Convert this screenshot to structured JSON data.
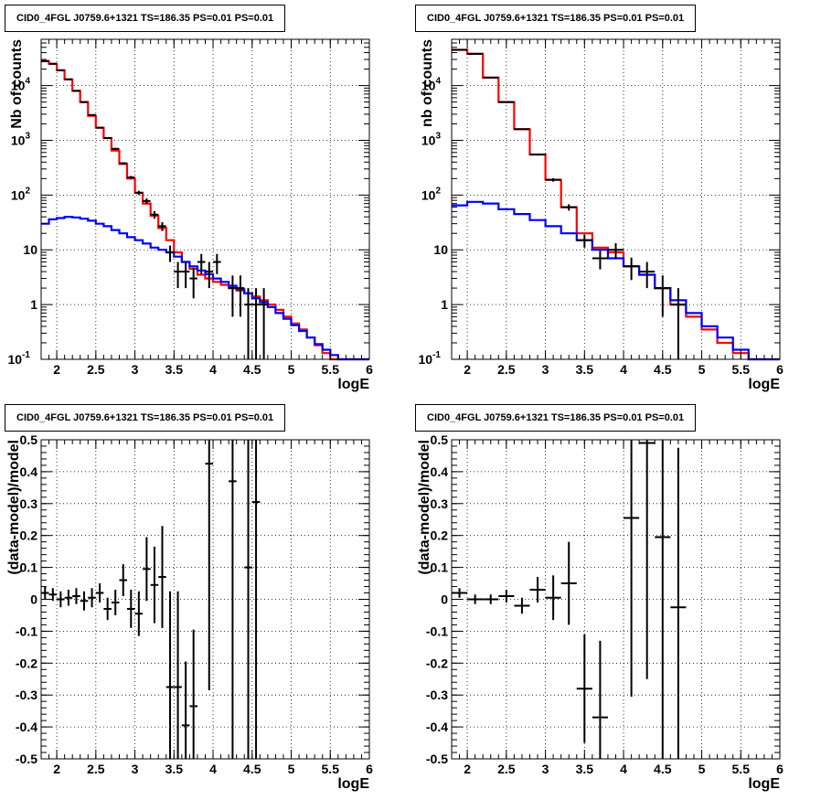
{
  "chart_data": [
    {
      "type": "line",
      "title": "CID0_4FGL J0759.6+1321 TS=186.35 PS=0.01 PS=0.01",
      "xlabel": "logE",
      "ylabel": "Nb of counts",
      "log_y": true,
      "xlim": [
        1.8,
        6.0
      ],
      "ylim": [
        0.1,
        70000
      ],
      "x_ticks": [
        "2",
        "2.5",
        "3",
        "3.5",
        "4",
        "4.5",
        "5",
        "5.5",
        "6"
      ],
      "y_ticks": [
        "10^-1",
        "1",
        "10",
        "10^2",
        "10^3",
        "10^4"
      ],
      "grid": true,
      "series": [
        {
          "type": "step",
          "color": "#ff0000",
          "edges": [
            1.8,
            1.9,
            2.0,
            2.1,
            2.2,
            2.3,
            2.4,
            2.5,
            2.6,
            2.7,
            2.8,
            2.9,
            3.0,
            3.1,
            3.2,
            3.3,
            3.4,
            3.5,
            3.6,
            3.7,
            3.8,
            3.9,
            4.0,
            4.1,
            4.2,
            4.3,
            4.4,
            4.5,
            4.6,
            4.7,
            4.8,
            4.9,
            5.0,
            5.1,
            5.2,
            5.3,
            5.4,
            5.5,
            5.6,
            5.7,
            5.8,
            5.9,
            6.0
          ],
          "values": [
            28000,
            25000,
            19000,
            13000,
            8000,
            5000,
            2800,
            1700,
            1100,
            650,
            370,
            200,
            110,
            70,
            42,
            25,
            15,
            9,
            6,
            4.5,
            3.5,
            3,
            2.6,
            2.3,
            2,
            1.8,
            1.6,
            1.4,
            1.2,
            1,
            0.8,
            0.6,
            0.45,
            0.35,
            0.25,
            0.18,
            0.13,
            0.1,
            0.1,
            0.1,
            0.1,
            0.1
          ]
        },
        {
          "type": "step",
          "color": "#0000ff",
          "edges": [
            1.8,
            1.9,
            2.0,
            2.1,
            2.2,
            2.3,
            2.4,
            2.5,
            2.6,
            2.7,
            2.8,
            2.9,
            3.0,
            3.1,
            3.2,
            3.3,
            3.4,
            3.5,
            3.6,
            3.7,
            3.8,
            3.9,
            4.0,
            4.1,
            4.2,
            4.3,
            4.4,
            4.5,
            4.6,
            4.7,
            4.8,
            4.9,
            5.0,
            5.1,
            5.2,
            5.3,
            5.4,
            5.5,
            5.6,
            5.7,
            5.8,
            5.9,
            6.0
          ],
          "values": [
            30,
            36,
            38,
            40,
            39,
            37,
            34,
            30,
            27,
            23,
            20,
            17,
            15,
            13,
            11,
            10,
            9,
            7.5,
            6,
            5,
            4.2,
            3.6,
            3,
            2.6,
            2.2,
            1.9,
            1.6,
            1.3,
            1.1,
            0.9,
            0.7,
            0.55,
            0.42,
            0.33,
            0.25,
            0.19,
            0.15,
            0.12,
            0.1,
            0.1,
            0.1,
            0.1
          ]
        },
        {
          "type": "points",
          "color": "#000000",
          "x": [
            1.85,
            1.95,
            2.05,
            2.15,
            2.25,
            2.35,
            2.45,
            2.55,
            2.65,
            2.75,
            2.85,
            2.95,
            3.05,
            3.15,
            3.25,
            3.35,
            3.45,
            3.55,
            3.65,
            3.75,
            3.85,
            3.95,
            4.05,
            4.25,
            4.35,
            4.45,
            4.55,
            4.65
          ],
          "y": [
            28000,
            25000,
            19000,
            13000,
            8000,
            5000,
            2900,
            1700,
            1100,
            700,
            380,
            210,
            110,
            78,
            44,
            27,
            9,
            4,
            4,
            3,
            6,
            4,
            6,
            2,
            2,
            1,
            1,
            1
          ],
          "xerr": 0.05,
          "yerr_lo": [
            170,
            160,
            140,
            120,
            90,
            70,
            54,
            41,
            33,
            26,
            20,
            14,
            10,
            9,
            7,
            5,
            3,
            2,
            2,
            1.7,
            2.4,
            2,
            2.4,
            1.4,
            1.4,
            1,
            1,
            1
          ],
          "yerr_hi": [
            170,
            160,
            140,
            120,
            90,
            70,
            54,
            41,
            33,
            26,
            20,
            14,
            10,
            9,
            7,
            5,
            3,
            2,
            2,
            1.7,
            2.4,
            2,
            2.4,
            1.4,
            1.4,
            1,
            1,
            1
          ]
        }
      ]
    },
    {
      "type": "line",
      "title": "CID0_4FGL J0759.6+1321 TS=186.35 PS=0.01 PS=0.01",
      "xlabel": "logE",
      "ylabel": "nb of counts",
      "log_y": true,
      "xlim": [
        1.8,
        6.0
      ],
      "ylim": [
        0.1,
        70000
      ],
      "x_ticks": [
        "2",
        "2.5",
        "3",
        "3.5",
        "4",
        "4.5",
        "5",
        "5.5",
        "6"
      ],
      "y_ticks": [
        "10^-1",
        "1",
        "10",
        "10^2",
        "10^3",
        "10^4"
      ],
      "grid": true,
      "series": [
        {
          "type": "step",
          "color": "#ff0000",
          "edges": [
            1.8,
            2.0,
            2.2,
            2.4,
            2.6,
            2.8,
            3.0,
            3.2,
            3.4,
            3.6,
            3.8,
            4.0,
            4.2,
            4.4,
            4.6,
            4.8,
            5.0,
            5.2,
            5.4,
            5.6,
            5.8,
            6.0
          ],
          "values": [
            45000,
            38000,
            14000,
            5000,
            1600,
            550,
            190,
            60,
            20,
            11,
            9,
            5,
            3.5,
            2,
            1,
            0.6,
            0.35,
            0.2,
            0.13,
            0.1,
            0.1
          ]
        },
        {
          "type": "step",
          "color": "#0000ff",
          "edges": [
            1.8,
            2.0,
            2.2,
            2.4,
            2.6,
            2.8,
            3.0,
            3.2,
            3.4,
            3.6,
            3.8,
            4.0,
            4.2,
            4.4,
            4.6,
            4.8,
            5.0,
            5.2,
            5.4,
            5.6,
            5.8,
            6.0
          ],
          "values": [
            65,
            75,
            70,
            55,
            45,
            35,
            27,
            20,
            15,
            10,
            7,
            5,
            3.5,
            2,
            1.2,
            0.7,
            0.4,
            0.25,
            0.15,
            0.1,
            0.1
          ]
        },
        {
          "type": "points",
          "color": "#000000",
          "x": [
            1.9,
            2.1,
            2.3,
            2.5,
            2.7,
            2.9,
            3.1,
            3.3,
            3.5,
            3.7,
            3.9,
            4.1,
            4.3,
            4.5,
            4.7
          ],
          "y": [
            45000,
            38000,
            14000,
            5000,
            1600,
            550,
            190,
            60,
            15,
            7,
            10,
            5,
            4,
            2,
            1
          ],
          "xerr": 0.1,
          "yerr_lo": [
            212,
            195,
            118,
            70,
            40,
            23,
            14,
            8,
            4,
            2.6,
            3.2,
            2.2,
            2,
            1.4,
            1
          ],
          "yerr_hi": [
            212,
            195,
            118,
            70,
            40,
            23,
            14,
            8,
            4,
            2.6,
            3.2,
            2.2,
            2,
            1.4,
            1
          ]
        }
      ]
    },
    {
      "type": "scatter",
      "title": "CID0_4FGL J0759.6+1321 TS=186.35 PS=0.01 PS=0.01",
      "xlabel": "logE",
      "ylabel": "(data-model)/model",
      "xlim": [
        1.8,
        6.0
      ],
      "ylim": [
        -0.5,
        0.5
      ],
      "x_ticks": [
        "2",
        "2.5",
        "3",
        "3.5",
        "4",
        "4.5",
        "5",
        "5.5",
        "6"
      ],
      "y_ticks": [
        "-0.5",
        "-0.4",
        "-0.3",
        "-0.2",
        "-0.1",
        "0",
        "0.1",
        "0.2",
        "0.3",
        "0.4",
        "0.5"
      ],
      "grid": true,
      "series": [
        {
          "type": "points",
          "color": "#000000",
          "x": [
            1.85,
            1.95,
            2.05,
            2.15,
            2.25,
            2.35,
            2.45,
            2.55,
            2.65,
            2.75,
            2.85,
            2.95,
            3.05,
            3.15,
            3.25,
            3.35,
            3.45,
            3.55,
            3.65,
            3.75,
            3.95,
            4.25,
            4.45,
            4.55
          ],
          "y": [
            0.02,
            0.015,
            0.0,
            0.005,
            0.01,
            -0.005,
            0.005,
            0.02,
            -0.03,
            -0.01,
            0.06,
            -0.03,
            -0.045,
            0.095,
            0.045,
            0.07,
            -0.275,
            -0.275,
            -0.395,
            -0.335,
            0.425,
            0.37,
            0.1,
            0.305
          ],
          "xerr": 0.05,
          "yerr_lo": [
            0.02,
            0.02,
            0.025,
            0.025,
            0.025,
            0.03,
            0.03,
            0.03,
            0.035,
            0.04,
            0.05,
            0.06,
            0.07,
            0.1,
            0.12,
            0.16,
            0.27,
            0.25,
            0.2,
            0.24,
            0.71,
            0.9,
            0.7,
            0.9
          ],
          "yerr_hi": [
            0.02,
            0.02,
            0.025,
            0.025,
            0.025,
            0.03,
            0.03,
            0.03,
            0.035,
            0.04,
            0.05,
            0.06,
            0.07,
            0.1,
            0.12,
            0.16,
            0.3,
            0.3,
            0.2,
            0.24,
            0.71,
            0.9,
            0.7,
            0.9
          ]
        }
      ]
    },
    {
      "type": "scatter",
      "title": "CID0_4FGL J0759.6+1321 TS=186.35 PS=0.01 PS=0.01",
      "xlabel": "logE",
      "ylabel": "(data-model)/model",
      "xlim": [
        1.8,
        6.0
      ],
      "ylim": [
        -0.5,
        0.5
      ],
      "x_ticks": [
        "2",
        "2.5",
        "3",
        "3.5",
        "4",
        "4.5",
        "5",
        "5.5",
        "6"
      ],
      "y_ticks": [
        "-0.5",
        "-0.4",
        "-0.3",
        "-0.2",
        "-0.1",
        "0",
        "0.1",
        "0.2",
        "0.3",
        "0.4",
        "0.5"
      ],
      "grid": true,
      "series": [
        {
          "type": "points",
          "color": "#000000",
          "x": [
            1.9,
            2.1,
            2.3,
            2.5,
            2.7,
            2.9,
            3.1,
            3.3,
            3.5,
            3.7,
            4.1,
            4.3,
            4.5,
            4.7
          ],
          "y": [
            0.02,
            0.0,
            0.0,
            0.01,
            -0.02,
            0.03,
            0.005,
            0.05,
            -0.28,
            -0.37,
            0.255,
            0.49,
            0.195,
            -0.025
          ],
          "xerr": 0.1,
          "yerr_lo": [
            0.015,
            0.015,
            0.015,
            0.02,
            0.025,
            0.04,
            0.07,
            0.13,
            0.17,
            0.24,
            0.56,
            0.74,
            0.72,
            0.5
          ],
          "yerr_hi": [
            0.015,
            0.015,
            0.015,
            0.02,
            0.025,
            0.04,
            0.07,
            0.13,
            0.17,
            0.24,
            0.56,
            0.74,
            0.72,
            0.5
          ]
        }
      ]
    }
  ]
}
